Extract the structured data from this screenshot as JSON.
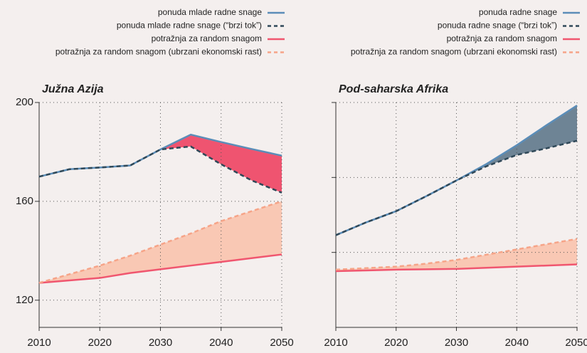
{
  "chart_data": [
    {
      "type": "line",
      "title": "Južna Azija",
      "x": [
        2010,
        2015,
        2020,
        2025,
        2030,
        2035,
        2040,
        2045,
        2050
      ],
      "xlim": [
        2010,
        2050
      ],
      "xticks": [
        2010,
        2020,
        2030,
        2040,
        2050
      ],
      "ylim": [
        109,
        200
      ],
      "yticks": [
        120,
        160,
        200
      ],
      "show_ytick_labels": true,
      "grid": true,
      "series": [
        {
          "name": "ponuda mlade radne snage",
          "color": "#5b8db8",
          "dash": false,
          "values": [
            170,
            173,
            173.7,
            174.5,
            181,
            187,
            184,
            181.2,
            178.5
          ]
        },
        {
          "name": "ponuda mlade radne snage (“brzi tok”)",
          "color": "#2f4858",
          "dash": true,
          "values": [
            170,
            173,
            173.7,
            174.5,
            181,
            182.2,
            175,
            168.5,
            163.5
          ]
        },
        {
          "name": "potražnja za random snagom",
          "color": "#f0566f",
          "dash": false,
          "values": [
            127,
            128,
            129,
            131,
            132.5,
            134,
            135.5,
            137,
            138.5
          ]
        },
        {
          "name": "potražnja za random snagom (ubrzani ekonomski rast)",
          "color": "#f6a488",
          "dash": true,
          "values": [
            127,
            130.5,
            134,
            138,
            142.5,
            147,
            152,
            156,
            160
          ]
        }
      ],
      "fills": [
        {
          "between": [
            0,
            1
          ],
          "color": "#ef5470"
        },
        {
          "between": [
            2,
            3
          ],
          "color": "#f9c8b4"
        }
      ]
    },
    {
      "type": "line",
      "title": "Pod-saharska Afrika",
      "x": [
        2010,
        2015,
        2020,
        2025,
        2030,
        2035,
        2040,
        2045,
        2050
      ],
      "xlim": [
        2010,
        2050
      ],
      "xticks": [
        2010,
        2020,
        2030,
        2040,
        2050
      ],
      "ylim": [
        0,
        300
      ],
      "yticks": [
        100,
        200,
        300
      ],
      "show_ytick_labels": false,
      "grid": true,
      "series": [
        {
          "name": "ponuda radne snage",
          "color": "#5b8db8",
          "dash": false,
          "values": [
            123,
            140,
            155,
            175,
            196,
            218,
            243,
            270,
            296
          ]
        },
        {
          "name": "ponuda radne snage (“brzi tok”)",
          "color": "#2f4858",
          "dash": true,
          "values": [
            123,
            140,
            155,
            175,
            196,
            215,
            230,
            239,
            249
          ]
        },
        {
          "name": "potražnja za random snagom",
          "color": "#f0566f",
          "dash": false,
          "values": [
            75,
            76,
            77,
            77.5,
            78,
            79.5,
            81,
            82.5,
            84
          ]
        },
        {
          "name": "potražnja za random snagom (ubrzani ekonomski rast)",
          "color": "#f6a488",
          "dash": true,
          "values": [
            77,
            79,
            81,
            85,
            90,
            97,
            104,
            111,
            118
          ]
        }
      ],
      "fills": [
        {
          "between": [
            0,
            1
          ],
          "color": "#6e8495"
        },
        {
          "between": [
            2,
            3
          ],
          "color": "#f9c8b4"
        }
      ]
    }
  ]
}
